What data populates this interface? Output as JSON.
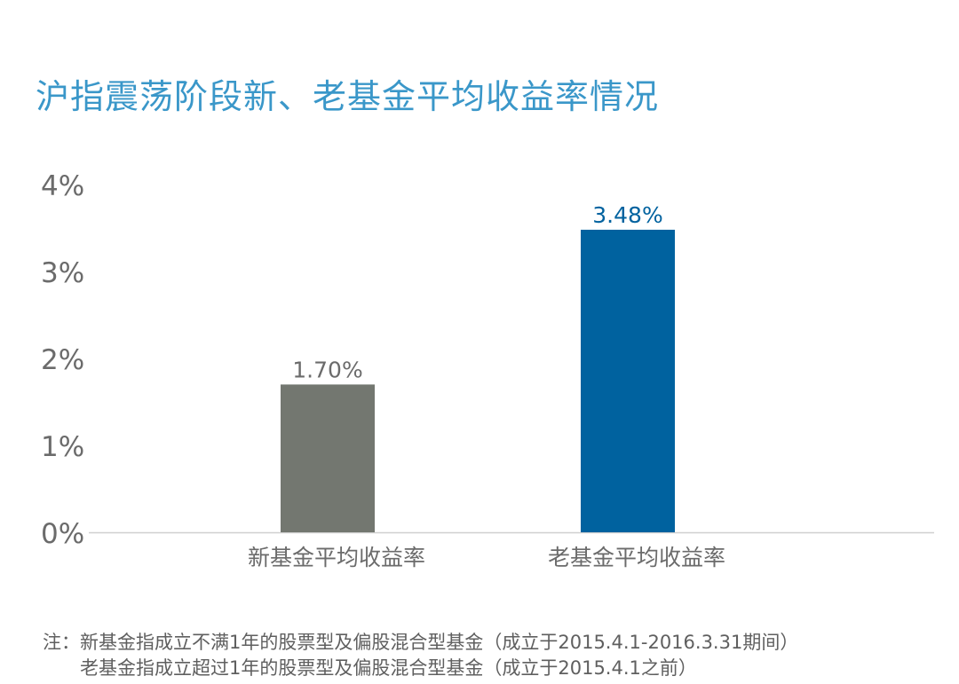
{
  "colors": {
    "title": "#3a97c9",
    "new_fund_bar": "#737770",
    "old_fund_bar": "#00629f",
    "old_fund_label": "#00629f",
    "axis_text": "#6b6b6b",
    "baseline": "#d0d0d0"
  },
  "chart_data": {
    "type": "bar",
    "title": "沪指震荡阶段新、老基金平均收益率情况",
    "xlabel": "",
    "ylabel": "",
    "categories": [
      "新基金平均收益率",
      "老基金平均收益率"
    ],
    "values": [
      1.7,
      3.48
    ],
    "value_labels": [
      "1.70%",
      "3.48%"
    ],
    "ylim": [
      0,
      4
    ],
    "yticks": [
      "0%",
      "1%",
      "2%",
      "3%",
      "4%"
    ],
    "grid": false,
    "legend": "none"
  },
  "note": {
    "line1": "注：新基金指成立不满1年的股票型及偏股混合型基金（成立于2015.4.1-2016.3.31期间）",
    "line2": "老基金指成立超过1年的股票型及偏股混合型基金（成立于2015.4.1之前）"
  }
}
